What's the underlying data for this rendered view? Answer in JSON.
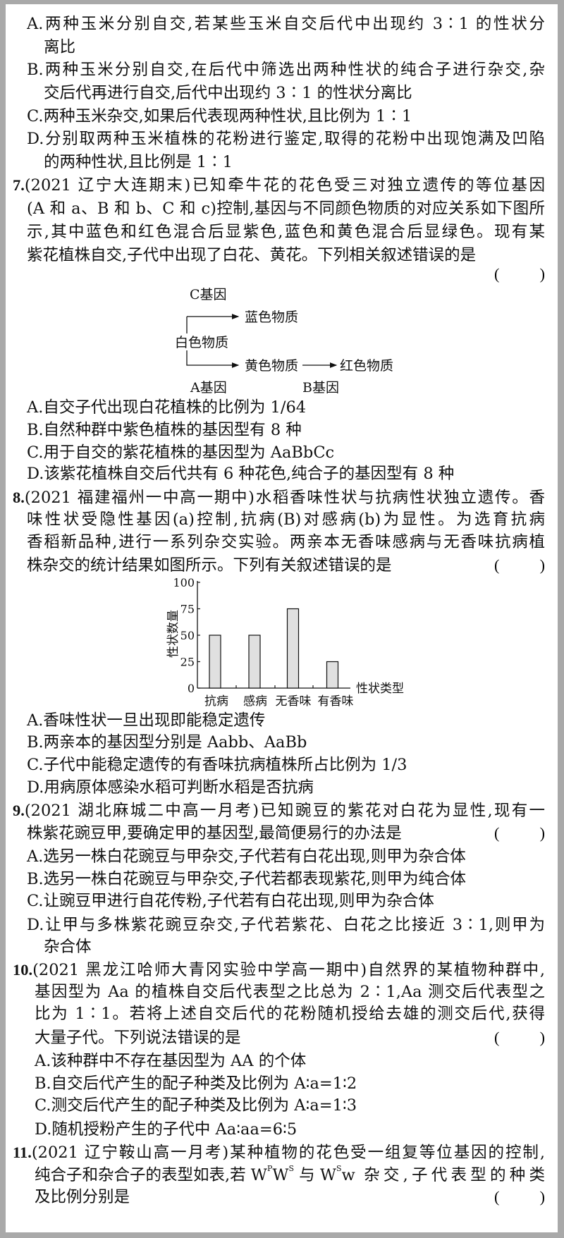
{
  "q6_options": {
    "A1": "A.两种玉米分别自交,若某些玉米自交后代中出现约 3∶1 的性状分",
    "A2": "离比",
    "B1": "B.两种玉米分别自交,在后代中筛选出两种性状的纯合子进行杂交,杂",
    "B2": "交后代再进行自交,后代中出现约 3∶1 的性状分离比",
    "C": "C.两种玉米杂交,如果后代表现两种性状,且比例为 1∶1",
    "D1": "D.分别取两种玉米植株的花粉进行鉴定,取得的花粉中出现饱满及凹陷",
    "D2": "的两种性状,且比例是 1∶1"
  },
  "q7": {
    "number": "7.",
    "l1": "(2021 辽宁大连期末)已知牵牛花的花色受三对独立遗传的等位基因",
    "l2": "(A 和 a、B 和 b、C 和 c)控制,基因与不同颜色物质的对应关系如下图所",
    "l3": "示,其中蓝色和红色混合后显紫色,蓝色和黄色混合后显绿色。现有某",
    "l4": "紫花植株自交,子代中出现了白花、黄花。下列相关叙述错误的是",
    "paren_open": "(",
    "paren_close": ")",
    "diagram": {
      "c_gene": "C基因",
      "blue": "蓝色物质",
      "white": "白色物质",
      "yellow": "黄色物质",
      "red": "红色物质",
      "a_gene": "A基因",
      "b_gene": "B基因"
    },
    "A": "A.自交子代出现白花植株的比例为 1/64",
    "B": "B.自然种群中紫色植株的基因型有 8 种",
    "C": "C.用于自交的紫花植株的基因型为 AaBbCc",
    "D": "D.该紫花植株自交后代共有 6 种花色,纯合子的基因型有 8 种"
  },
  "q8": {
    "number": "8.",
    "l1": "(2021 福建福州一中高一期中)水稻香味性状与抗病性状独立遗传。香",
    "l2": "味性状受隐性基因(a)控制,抗病(B)对感病(b)为显性。为选育抗病",
    "l3": "香稻新品种,进行一系列杂交实验。两亲本无香味感病与无香味抗病植",
    "l4": "株杂交的统计结果如图所示。下列有关叙述错误的是",
    "A": "A.香味性状一旦出现即能稳定遗传",
    "B": "B.两亲本的基因型分别是 Aabb、AaBb",
    "C": "C.子代中能稳定遗传的有香味抗病植株所占比例为 1/3",
    "D": "D.用病原体感染水稻可判断水稻是否抗病"
  },
  "chart_data": {
    "type": "bar",
    "categories": [
      "抗病",
      "感病",
      "无香味",
      "有香味"
    ],
    "values": [
      50,
      50,
      75,
      25
    ],
    "xlabel": "性状类型",
    "ylabel": "性状数量",
    "ylim": [
      0,
      100
    ],
    "yticks": [
      "0",
      "25",
      "50",
      "75",
      "100"
    ],
    "grid": false,
    "bar_color": "#e0e0e0"
  },
  "q9": {
    "number": "9.",
    "l1": "(2021 湖北麻城二中高一月考)已知豌豆的紫花对白花为显性,现有一",
    "l2": "株紫花豌豆甲,要确定甲的基因型,最简便易行的办法是",
    "A": "A.选另一株白花豌豆与甲杂交,子代若有白花出现,则甲为杂合体",
    "B": "B.选另一株白花豌豆与甲杂交,子代若都表现紫花,则甲为纯合体",
    "C": "C.让豌豆甲进行自花传粉,子代若有白花出现,则甲为杂合体",
    "D1": "D.让甲与多株紫花豌豆杂交,子代若紫花、白花之比接近 3∶1,则甲为",
    "D2": "杂合体"
  },
  "q10": {
    "number": "10.",
    "l1": "(2021 黑龙江哈师大青冈实验中学高一期中)自然界的某植物种群中,",
    "l2": "基因型为 Aa 的植株自交后代表型之比总为 2∶1,Aa 测交后代表型之",
    "l3": "比为 1∶1。若将上述自交后代的花粉随机授给去雄的测交后代,获得",
    "l4": "大量子代。下列说法错误的是",
    "A": "A.该种群中不存在基因型为 AA 的个体",
    "B": "B.自交后代产生的配子种类及比例为 A∶a=1∶2",
    "C": "C.测交后代产生的配子种类及比例为 A∶a=1∶3",
    "D": "D.随机授粉产生的子代中 Aa∶aa=6∶5"
  },
  "q11": {
    "number": "11.",
    "l1": "(2021 辽宁鞍山高一月考)某种植物的花色受一组复等位基因的控制,",
    "l2a": "纯合子和杂合子的表型如表,若 W",
    "sup_p": "P",
    "l2b": "W",
    "sup_s1": "S",
    "l2c": " 与 W",
    "sup_s2": "S",
    "l2d": "w 杂交,子代表型的种类",
    "l3": "及比例分别是"
  }
}
